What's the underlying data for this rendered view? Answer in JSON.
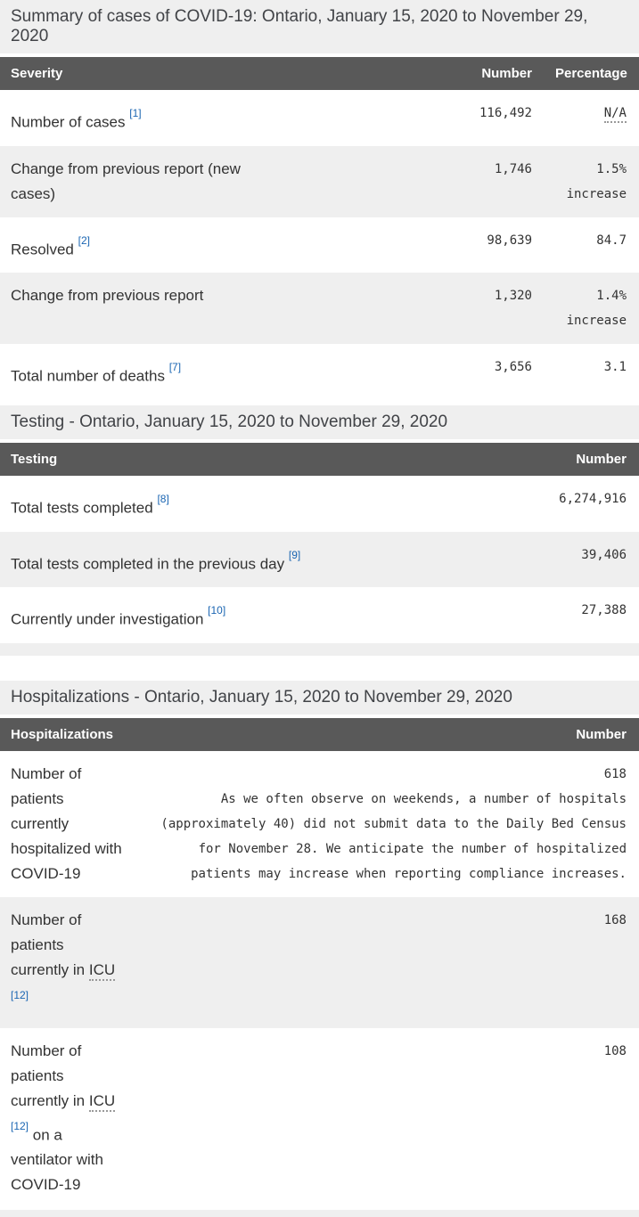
{
  "colors": {
    "link_blue": "#1a65b2",
    "table_header_bg": "#595959",
    "row_alt_bg": "#efefef",
    "caption_bg": "#efefef"
  },
  "summary": {
    "title": "Summary of cases of COVID-19: Ontario, January 15, 2020 to November 29, 2020",
    "columns": {
      "severity": "Severity",
      "number": "Number",
      "percentage": "Percentage"
    },
    "rows": [
      {
        "label": "Number of cases",
        "ref": "[1]",
        "number": "116,492",
        "percentage": "N/A"
      },
      {
        "label": "Change from previous report (new cases)",
        "number": "1,746",
        "percentage": "1.5% increase"
      },
      {
        "label": "Resolved",
        "ref": "[2]",
        "number": "98,639",
        "percentage": "84.7"
      },
      {
        "label": "Change from previous report",
        "number": "1,320",
        "percentage": "1.4% increase"
      },
      {
        "label": "Total number of deaths",
        "ref": "[7]",
        "number": "3,656",
        "percentage": "3.1"
      }
    ]
  },
  "testing": {
    "title": "Testing - Ontario, January 15, 2020 to November 29, 2020",
    "columns": {
      "testing": "Testing",
      "number": "Number"
    },
    "rows": [
      {
        "label": "Total tests completed",
        "ref": "[8]",
        "number": "6,274,916"
      },
      {
        "label": "Total tests completed in the previous day",
        "ref": "[9]",
        "number": "39,406"
      },
      {
        "label": "Currently under investigation",
        "ref": "[10]",
        "number": "27,388"
      }
    ]
  },
  "hospitalizations": {
    "title": "Hospitalizations - Ontario, January 15, 2020 to November 29, 2020",
    "columns": {
      "hospitalizations": "Hospitalizations",
      "number": "Number"
    },
    "rows": [
      {
        "label": "Number of patients currently hospitalized with COVID-19",
        "number": "618",
        "note": "As we often observe on weekends, a number of hospitals\n(approximately 40) did not submit data to the Daily Bed Census\nfor November 28. We anticipate the number of hospitalized\npatients may increase when reporting compliance increases."
      },
      {
        "label_pre": "Number of patients currently in ",
        "abbr": "ICU",
        "ref": "[12]",
        "number": "168"
      },
      {
        "label_pre": "Number of patients currently in ",
        "abbr": "ICU",
        "ref": "[12]",
        "label_post": " on a ventilator with COVID-19",
        "number": "108"
      }
    ]
  }
}
